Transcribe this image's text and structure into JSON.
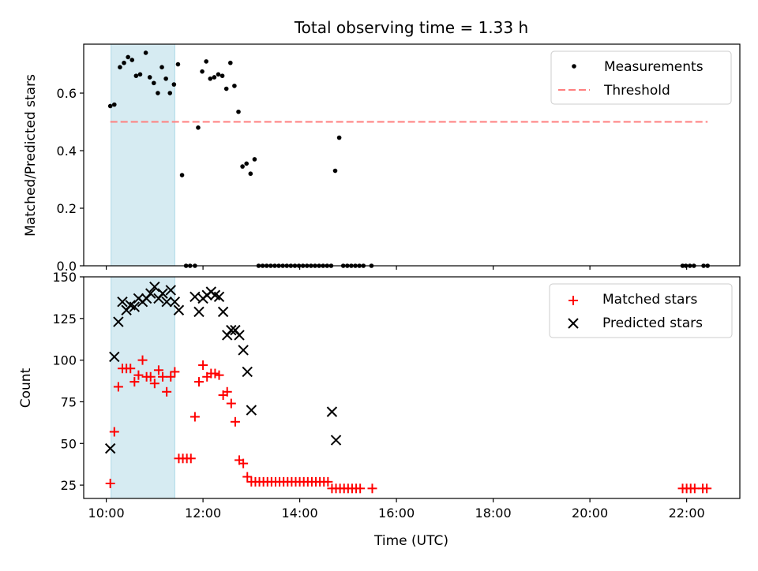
{
  "chart_data": [
    {
      "type": "scatter",
      "title": "Total observing time = 1.33 h",
      "xlabel": "",
      "ylabel": "Matched/Predicted stars",
      "xlim": [
        "09:32",
        "23:06"
      ],
      "ylim": [
        0,
        0.77
      ],
      "yticks": [
        "0.0",
        "0.2",
        "0.4",
        "0.6"
      ],
      "xticks": [
        "10:00",
        "12:00",
        "14:00",
        "16:00",
        "18:00",
        "20:00",
        "22:00"
      ],
      "shaded_span": {
        "x": [
          "10:06",
          "11:25"
        ],
        "color": "#add8e6"
      },
      "legend": {
        "position": "top-right",
        "entries": [
          "Measurements",
          "Threshold"
        ]
      },
      "series": [
        {
          "name": "Measurements",
          "color": "#000000",
          "marker": "point",
          "x": [
            "10:05",
            "10:10",
            "10:17",
            "10:22",
            "10:27",
            "10:32",
            "10:37",
            "10:42",
            "10:49",
            "10:54",
            "10:59",
            "11:04",
            "11:09",
            "11:14",
            "11:19",
            "11:24",
            "11:29",
            "11:34",
            "11:39",
            "11:44",
            "11:50",
            "11:54",
            "11:59",
            "12:04",
            "12:09",
            "12:14",
            "12:19",
            "12:24",
            "12:29",
            "12:34",
            "12:39",
            "12:44",
            "12:49",
            "12:54",
            "12:59",
            "13:04",
            "13:09",
            "13:14",
            "13:19",
            "13:24",
            "13:29",
            "13:34",
            "13:39",
            "13:44",
            "13:49",
            "13:54",
            "13:59",
            "14:04",
            "14:09",
            "14:14",
            "14:19",
            "14:24",
            "14:29",
            "14:34",
            "14:39",
            "14:44",
            "14:49",
            "14:54",
            "14:59",
            "15:04",
            "15:09",
            "15:14",
            "15:19",
            "15:29",
            "21:55",
            "21:59",
            "22:04",
            "22:09",
            "22:21",
            "22:26"
          ],
          "y": [
            0.555,
            0.56,
            0.69,
            0.705,
            0.725,
            0.715,
            0.66,
            0.665,
            0.74,
            0.655,
            0.635,
            0.6,
            0.69,
            0.65,
            0.6,
            0.63,
            0.7,
            0.315,
            0,
            0,
            0,
            0.48,
            0.675,
            0.71,
            0.65,
            0.655,
            0.665,
            0.66,
            0.615,
            0.705,
            0.625,
            0.535,
            0.345,
            0.355,
            0.32,
            0.37,
            0,
            0,
            0,
            0,
            0,
            0,
            0,
            0,
            0,
            0,
            0,
            0,
            0,
            0,
            0,
            0,
            0,
            0,
            0,
            0.33,
            0.445,
            0,
            0,
            0,
            0,
            0,
            0,
            0,
            0,
            0,
            0,
            0,
            0,
            0
          ]
        },
        {
          "name": "Threshold",
          "color": "#ff7f7f",
          "style": "dashed",
          "x": [
            "10:05",
            "22:26"
          ],
          "y": [
            0.5,
            0.5
          ]
        }
      ]
    },
    {
      "type": "scatter",
      "title": "",
      "xlabel": "Time (UTC)",
      "ylabel": "Count",
      "xlim": [
        "09:32",
        "23:06"
      ],
      "ylim": [
        17,
        150
      ],
      "yticks": [
        "25",
        "50",
        "75",
        "100",
        "125",
        "150"
      ],
      "xticks": [
        "10:00",
        "12:00",
        "14:00",
        "16:00",
        "18:00",
        "20:00",
        "22:00"
      ],
      "shaded_span": {
        "x": [
          "10:06",
          "11:25"
        ],
        "color": "#add8e6"
      },
      "legend": {
        "position": "top-right",
        "entries": [
          "Matched stars",
          "Predicted stars"
        ]
      },
      "series": [
        {
          "name": "Matched stars",
          "color": "#ff0000",
          "marker": "plus",
          "x": [
            "10:05",
            "10:10",
            "10:15",
            "10:20",
            "10:25",
            "10:30",
            "10:35",
            "10:40",
            "10:45",
            "10:50",
            "10:55",
            "11:00",
            "11:05",
            "11:10",
            "11:15",
            "11:20",
            "11:25",
            "11:30",
            "11:35",
            "11:40",
            "11:45",
            "11:50",
            "11:55",
            "12:00",
            "12:05",
            "12:10",
            "12:15",
            "12:20",
            "12:25",
            "12:30",
            "12:35",
            "12:40",
            "12:45",
            "12:50",
            "12:55",
            "13:00",
            "13:05",
            "13:10",
            "13:15",
            "13:20",
            "13:25",
            "13:30",
            "13:35",
            "13:40",
            "13:45",
            "13:50",
            "13:55",
            "14:00",
            "14:05",
            "14:10",
            "14:15",
            "14:20",
            "14:25",
            "14:30",
            "14:35",
            "14:40",
            "14:45",
            "14:50",
            "14:55",
            "15:00",
            "15:05",
            "15:10",
            "15:15",
            "15:30",
            "21:55",
            "22:00",
            "22:05",
            "22:10",
            "22:20",
            "22:25"
          ],
          "y": [
            26,
            57,
            84,
            95,
            95,
            95,
            87,
            91,
            100,
            90,
            90,
            86,
            94,
            90,
            81,
            90,
            93,
            41,
            41,
            41,
            41,
            66,
            87,
            97,
            90,
            92,
            92,
            91,
            79,
            81,
            74,
            63,
            40,
            38,
            30,
            27,
            27,
            27,
            27,
            27,
            27,
            27,
            27,
            27,
            27,
            27,
            27,
            27,
            27,
            27,
            27,
            27,
            27,
            27,
            27,
            23,
            23,
            23,
            23,
            23,
            23,
            23,
            23,
            23,
            23,
            23,
            23,
            23,
            23,
            23
          ]
        },
        {
          "name": "Predicted stars",
          "color": "#000000",
          "marker": "x",
          "x": [
            "10:05",
            "10:10",
            "10:15",
            "10:20",
            "10:25",
            "10:30",
            "10:35",
            "10:40",
            "10:45",
            "10:50",
            "10:55",
            "11:00",
            "11:05",
            "11:10",
            "11:15",
            "11:20",
            "11:25",
            "11:30",
            "11:50",
            "11:55",
            "12:00",
            "12:05",
            "12:10",
            "12:15",
            "12:20",
            "12:25",
            "12:30",
            "12:35",
            "12:40",
            "12:45",
            "12:50",
            "12:55",
            "13:00",
            "14:40",
            "14:45"
          ],
          "y": [
            47,
            102,
            123,
            135,
            130,
            133,
            132,
            137,
            135,
            137,
            140,
            144,
            137,
            140,
            135,
            142,
            135,
            130,
            138,
            129,
            137,
            139,
            141,
            139,
            138,
            129,
            115,
            118,
            118,
            115,
            106,
            93,
            70,
            69,
            52
          ]
        }
      ]
    }
  ]
}
